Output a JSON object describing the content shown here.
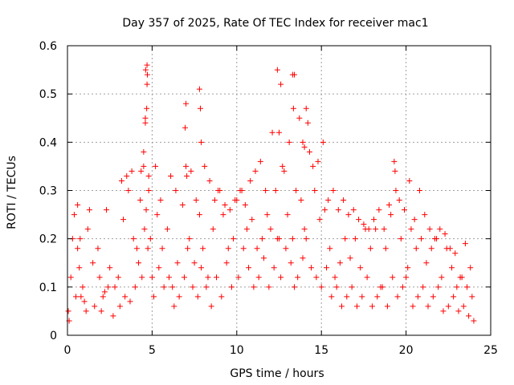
{
  "chart_data": {
    "type": "scatter",
    "title": "Day 357 of 2025, Rate Of TEC Index for receiver mac1",
    "xlabel": "GPS time / hours",
    "ylabel": "ROTI / TECUs",
    "xlim": [
      0,
      25
    ],
    "ylim": [
      0,
      0.6
    ],
    "xticks": [
      "0",
      "5",
      "10",
      "15",
      "20",
      "25"
    ],
    "yticks": [
      "0",
      "0.1",
      "0.2",
      "0.3",
      "0.4",
      "0.5",
      "0.6"
    ],
    "grid": true,
    "marker": "plus",
    "color": "#ff0000",
    "series": [
      {
        "x": [
          0.05,
          0.2,
          0.4,
          0.6,
          0.8,
          1.0,
          1.2,
          1.5,
          1.8,
          2.0,
          2.2,
          2.5,
          2.8,
          3.0,
          3.3,
          3.6,
          3.9,
          4.1,
          4.3,
          4.5,
          4.6,
          4.7,
          4.8,
          5.0,
          5.3,
          5.6,
          5.9,
          6.2,
          6.5,
          6.8,
          7.0,
          7.2,
          7.5,
          7.8,
          8.0,
          8.3,
          8.6,
          8.9,
          9.2,
          9.5,
          9.8,
          10.0,
          10.3,
          10.6,
          10.9,
          11.2,
          11.5,
          11.8,
          12.0,
          12.3,
          12.5,
          12.7,
          13.0,
          13.3,
          13.5,
          13.8,
          14.0,
          14.3,
          14.6,
          14.9,
          15.2,
          15.5,
          15.8,
          16.1,
          16.4,
          16.7,
          17.0,
          17.3,
          17.6,
          17.9,
          18.2,
          18.5,
          18.8,
          19.1,
          19.4,
          19.7,
          20.0,
          20.3,
          20.6,
          20.9,
          21.2,
          21.5,
          21.8,
          22.1,
          22.4,
          22.7,
          23.0,
          23.3,
          23.6,
          23.9,
          0.1,
          0.5,
          0.7,
          0.9,
          1.1,
          1.6,
          1.9,
          2.1,
          2.4,
          2.7,
          3.1,
          3.4,
          3.7,
          4.0,
          4.2,
          4.4,
          4.55,
          4.65,
          4.75,
          4.9,
          5.1,
          5.4,
          5.7,
          6.0,
          6.3,
          6.6,
          6.9,
          7.1,
          7.4,
          7.7,
          7.9,
          8.2,
          8.5,
          8.8,
          9.1,
          9.4,
          9.7,
          10.1,
          10.4,
          10.7,
          11.0,
          11.3,
          11.6,
          11.9,
          12.2,
          12.4,
          12.6,
          12.9,
          13.2,
          13.4,
          13.6,
          13.9,
          14.1,
          14.4,
          14.7,
          15.0,
          15.3,
          15.6,
          15.9,
          16.2,
          16.5,
          16.8,
          17.1,
          17.4,
          17.7,
          18.0,
          18.3,
          18.6,
          18.9,
          19.2,
          19.5,
          19.8,
          20.1,
          20.4,
          20.7,
          21.0,
          21.3,
          21.6,
          21.9,
          22.2,
          22.5,
          22.8,
          23.1,
          23.4,
          23.7,
          24.0,
          0.3,
          0.6,
          0.75,
          1.3,
          2.3,
          3.2,
          3.5,
          3.8,
          4.35,
          4.5,
          4.6,
          4.62,
          4.68,
          4.7,
          4.72,
          4.8,
          5.2,
          5.5,
          6.1,
          6.4,
          6.95,
          7.0,
          7.05,
          7.3,
          7.6,
          7.8,
          7.85,
          7.9,
          8.1,
          8.4,
          8.7,
          9.0,
          9.3,
          9.6,
          9.9,
          10.2,
          10.5,
          10.8,
          11.1,
          11.4,
          11.7,
          12.1,
          12.4,
          12.5,
          12.6,
          12.8,
          13.1,
          13.3,
          13.35,
          13.4,
          13.7,
          13.9,
          14.0,
          14.1,
          14.2,
          14.5,
          14.8,
          15.1,
          15.4,
          15.7,
          16.0,
          16.3,
          16.6,
          16.9,
          17.2,
          17.5,
          17.8,
          18.1,
          18.4,
          18.7,
          19.0,
          19.3,
          19.35,
          19.6,
          19.9,
          20.2,
          20.5,
          20.8,
          21.1,
          21.4,
          21.7,
          22.0,
          22.3,
          22.6,
          22.9,
          23.2,
          23.5,
          23.8
        ],
        "y": [
          0.05,
          0.12,
          0.25,
          0.18,
          0.08,
          0.07,
          0.22,
          0.15,
          0.18,
          0.05,
          0.09,
          0.14,
          0.1,
          0.12,
          0.24,
          0.3,
          0.2,
          0.18,
          0.28,
          0.35,
          0.45,
          0.52,
          0.3,
          0.12,
          0.25,
          0.18,
          0.22,
          0.1,
          0.15,
          0.27,
          0.35,
          0.2,
          0.15,
          0.25,
          0.18,
          0.12,
          0.22,
          0.3,
          0.25,
          0.18,
          0.2,
          0.28,
          0.3,
          0.22,
          0.24,
          0.18,
          0.2,
          0.25,
          0.22,
          0.3,
          0.2,
          0.35,
          0.25,
          0.2,
          0.3,
          0.28,
          0.22,
          0.38,
          0.3,
          0.24,
          0.26,
          0.18,
          0.12,
          0.15,
          0.2,
          0.16,
          0.2,
          0.14,
          0.22,
          0.18,
          0.22,
          0.1,
          0.18,
          0.25,
          0.3,
          0.2,
          0.12,
          0.22,
          0.18,
          0.2,
          0.15,
          0.18,
          0.2,
          0.12,
          0.18,
          0.14,
          0.1,
          0.12,
          0.1,
          0.08,
          0.03,
          0.08,
          0.14,
          0.1,
          0.05,
          0.06,
          0.12,
          0.08,
          0.1,
          0.04,
          0.06,
          0.08,
          0.07,
          0.1,
          0.15,
          0.12,
          0.22,
          0.26,
          0.18,
          0.2,
          0.08,
          0.14,
          0.1,
          0.12,
          0.06,
          0.08,
          0.12,
          0.18,
          0.1,
          0.08,
          0.14,
          0.1,
          0.06,
          0.12,
          0.08,
          0.15,
          0.1,
          0.12,
          0.18,
          0.14,
          0.1,
          0.12,
          0.16,
          0.1,
          0.14,
          0.2,
          0.12,
          0.18,
          0.15,
          0.1,
          0.12,
          0.16,
          0.2,
          0.14,
          0.12,
          0.1,
          0.14,
          0.08,
          0.1,
          0.06,
          0.08,
          0.1,
          0.06,
          0.08,
          0.12,
          0.06,
          0.08,
          0.1,
          0.06,
          0.12,
          0.08,
          0.1,
          0.14,
          0.06,
          0.08,
          0.1,
          0.06,
          0.08,
          0.1,
          0.05,
          0.06,
          0.08,
          0.05,
          0.06,
          0.04,
          0.03,
          0.2,
          0.27,
          0.2,
          0.26,
          0.26,
          0.32,
          0.33,
          0.34,
          0.34,
          0.38,
          0.44,
          0.55,
          0.47,
          0.56,
          0.54,
          0.33,
          0.35,
          0.28,
          0.33,
          0.3,
          0.43,
          0.48,
          0.33,
          0.34,
          0.28,
          0.51,
          0.47,
          0.4,
          0.35,
          0.32,
          0.28,
          0.3,
          0.27,
          0.26,
          0.28,
          0.3,
          0.27,
          0.32,
          0.34,
          0.36,
          0.3,
          0.42,
          0.55,
          0.42,
          0.52,
          0.34,
          0.4,
          0.54,
          0.47,
          0.54,
          0.45,
          0.4,
          0.39,
          0.47,
          0.44,
          0.35,
          0.36,
          0.4,
          0.28,
          0.3,
          0.26,
          0.28,
          0.25,
          0.26,
          0.24,
          0.23,
          0.22,
          0.24,
          0.26,
          0.22,
          0.27,
          0.36,
          0.34,
          0.28,
          0.26,
          0.32,
          0.24,
          0.3,
          0.25,
          0.22,
          0.2,
          0.22,
          0.21,
          0.18,
          0.17,
          0.12,
          0.19,
          0.14
        ]
      }
    ]
  }
}
